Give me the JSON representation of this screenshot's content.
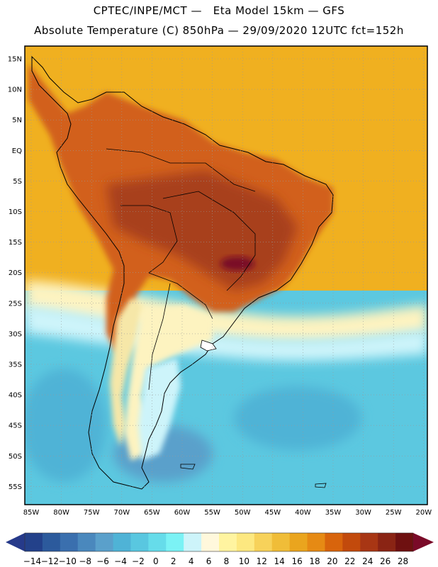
{
  "header": {
    "line1": "CPTEC/INPE/MCT —   Eta Model 15km — GFS",
    "line2": "Absolute Temperature (C) 850hPa — 29/09/2020 12UTC fct=152h"
  },
  "axes": {
    "lat_labels": [
      "15N",
      "10N",
      "5N",
      "EQ",
      "5S",
      "10S",
      "15S",
      "20S",
      "25S",
      "30S",
      "35S",
      "40S",
      "45S",
      "50S",
      "55S"
    ],
    "lon_labels": [
      "85W",
      "80W",
      "75W",
      "70W",
      "65W",
      "60W",
      "55W",
      "50W",
      "45W",
      "40W",
      "35W",
      "30W",
      "25W",
      "20W"
    ]
  },
  "colorbar": {
    "labels": [
      "-14",
      "-12",
      "-10",
      "-8",
      "-6",
      "-4",
      "-2",
      "0",
      "2",
      "4",
      "6",
      "8",
      "10",
      "12",
      "14",
      "16",
      "18",
      "20",
      "22",
      "24",
      "26",
      "28"
    ],
    "colors": [
      "#23418a",
      "#2c5a9c",
      "#3a6fae",
      "#4a88bd",
      "#5aa0cb",
      "#4fb3d6",
      "#59c7e0",
      "#66dcea",
      "#7bf2f5",
      "#cdf4fa",
      "#fff8dc",
      "#fff4a0",
      "#fde880",
      "#f7d25a",
      "#f0bd38",
      "#eaa51e",
      "#e68a14",
      "#d8640c",
      "#c24a0c",
      "#a83614",
      "#8a2414",
      "#6e1010"
    ],
    "under_color": "#263a8a",
    "over_color": "#7a0a28"
  },
  "map": {
    "ocean_north_color": "#f0b020",
    "ocean_south_color": "#5cc8e0",
    "land_hot_color": "#d2601a",
    "land_core_color": "#a8401a",
    "land_peak_color": "#7a1028",
    "andes_color": "#f6e7a8"
  }
}
